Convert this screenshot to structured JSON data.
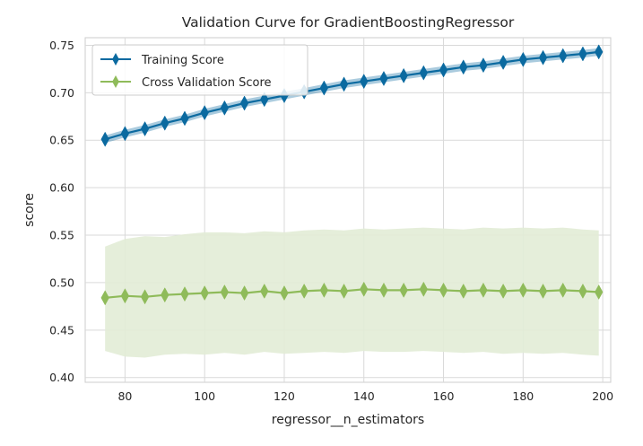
{
  "chart_data": {
    "type": "line",
    "title": "Validation Curve for GradientBoostingRegressor",
    "xlabel": "regressor__n_estimators",
    "ylabel": "score",
    "xlim": [
      70,
      202
    ],
    "ylim": [
      0.395,
      0.758
    ],
    "xticks": [
      80,
      100,
      120,
      140,
      160,
      180,
      200
    ],
    "yticks": [
      0.4,
      0.45,
      0.5,
      0.55,
      0.6,
      0.65,
      0.7,
      0.75
    ],
    "ytick_labels": [
      "0.40",
      "0.45",
      "0.50",
      "0.55",
      "0.60",
      "0.65",
      "0.70",
      "0.75"
    ],
    "grid": true,
    "legend_position": "top-left",
    "series": [
      {
        "name": "Training Score",
        "color": "#0b6aa0",
        "marker": "diamond",
        "x": [
          75,
          80,
          85,
          90,
          95,
          100,
          105,
          110,
          115,
          120,
          125,
          130,
          135,
          140,
          145,
          150,
          155,
          160,
          165,
          170,
          175,
          180,
          185,
          190,
          195,
          199
        ],
        "values": [
          0.651,
          0.657,
          0.662,
          0.668,
          0.673,
          0.679,
          0.684,
          0.689,
          0.693,
          0.697,
          0.701,
          0.705,
          0.709,
          0.712,
          0.715,
          0.718,
          0.721,
          0.724,
          0.727,
          0.729,
          0.732,
          0.735,
          0.737,
          0.739,
          0.741,
          0.743
        ],
        "band": [
          0.004,
          0.004,
          0.004,
          0.004,
          0.004,
          0.004,
          0.004,
          0.004,
          0.004,
          0.004,
          0.004,
          0.004,
          0.004,
          0.004,
          0.004,
          0.004,
          0.004,
          0.004,
          0.004,
          0.004,
          0.004,
          0.004,
          0.004,
          0.004,
          0.004,
          0.004
        ]
      },
      {
        "name": "Cross Validation Score",
        "color": "#8fbb5a",
        "band_color": "#e2ecd6",
        "marker": "diamond",
        "x": [
          75,
          80,
          85,
          90,
          95,
          100,
          105,
          110,
          115,
          120,
          125,
          130,
          135,
          140,
          145,
          150,
          155,
          160,
          165,
          170,
          175,
          180,
          185,
          190,
          195,
          199
        ],
        "values": [
          0.484,
          0.486,
          0.485,
          0.487,
          0.488,
          0.489,
          0.49,
          0.489,
          0.491,
          0.489,
          0.491,
          0.492,
          0.491,
          0.493,
          0.492,
          0.492,
          0.493,
          0.492,
          0.491,
          0.492,
          0.491,
          0.492,
          0.491,
          0.492,
          0.491,
          0.49
        ],
        "upper": [
          0.538,
          0.546,
          0.549,
          0.548,
          0.551,
          0.553,
          0.553,
          0.552,
          0.554,
          0.553,
          0.555,
          0.556,
          0.555,
          0.557,
          0.556,
          0.557,
          0.558,
          0.557,
          0.556,
          0.558,
          0.557,
          0.558,
          0.557,
          0.558,
          0.556,
          0.555
        ],
        "lower": [
          0.428,
          0.422,
          0.421,
          0.424,
          0.425,
          0.424,
          0.426,
          0.424,
          0.427,
          0.425,
          0.426,
          0.427,
          0.426,
          0.428,
          0.427,
          0.427,
          0.428,
          0.427,
          0.426,
          0.427,
          0.425,
          0.426,
          0.425,
          0.426,
          0.424,
          0.423
        ]
      }
    ]
  }
}
